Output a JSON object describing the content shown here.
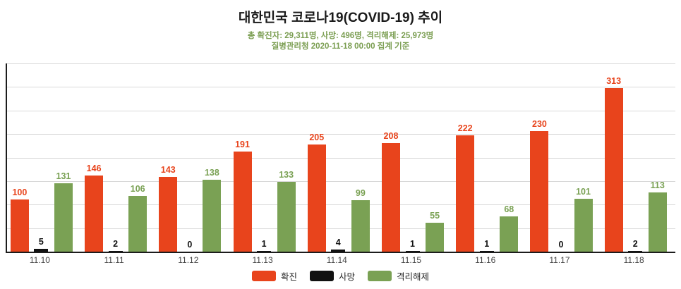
{
  "header": {
    "title": "대한민국 코로나19(COVID-19) 추이",
    "subtitle1": "총 확진자: 29,311명, 사망: 496명, 격리해제: 25,973명",
    "subtitle2": "질병관리청 2020-11-18 00:00 집계 기준"
  },
  "chart_data": {
    "type": "bar",
    "title": "대한민국 코로나19(COVID-19) 추이",
    "categories": [
      "11.10",
      "11.11",
      "11.12",
      "11.13",
      "11.14",
      "11.15",
      "11.16",
      "11.17",
      "11.18"
    ],
    "series": [
      {
        "name": "확진",
        "color": "#e8441c",
        "values": [
          100,
          146,
          143,
          191,
          205,
          208,
          222,
          230,
          313
        ]
      },
      {
        "name": "사망",
        "color": "#111111",
        "values": [
          5,
          2,
          0,
          1,
          4,
          1,
          1,
          0,
          2
        ]
      },
      {
        "name": "격리해제",
        "color": "#7aa154",
        "values": [
          131,
          106,
          138,
          133,
          99,
          55,
          68,
          101,
          113
        ]
      }
    ],
    "xlabel": "",
    "ylabel": "",
    "ylim": [
      0,
      360
    ],
    "gridline_count": 8,
    "grid": "horizontal",
    "legend_position": "bottom",
    "value_labels": true
  },
  "colors": {
    "confirmed": "#e8441c",
    "deaths": "#111111",
    "released": "#7aa154",
    "subtitle": "#7b9e52",
    "axis": "#1c1c1c",
    "gridline": "#d8d8d8"
  }
}
